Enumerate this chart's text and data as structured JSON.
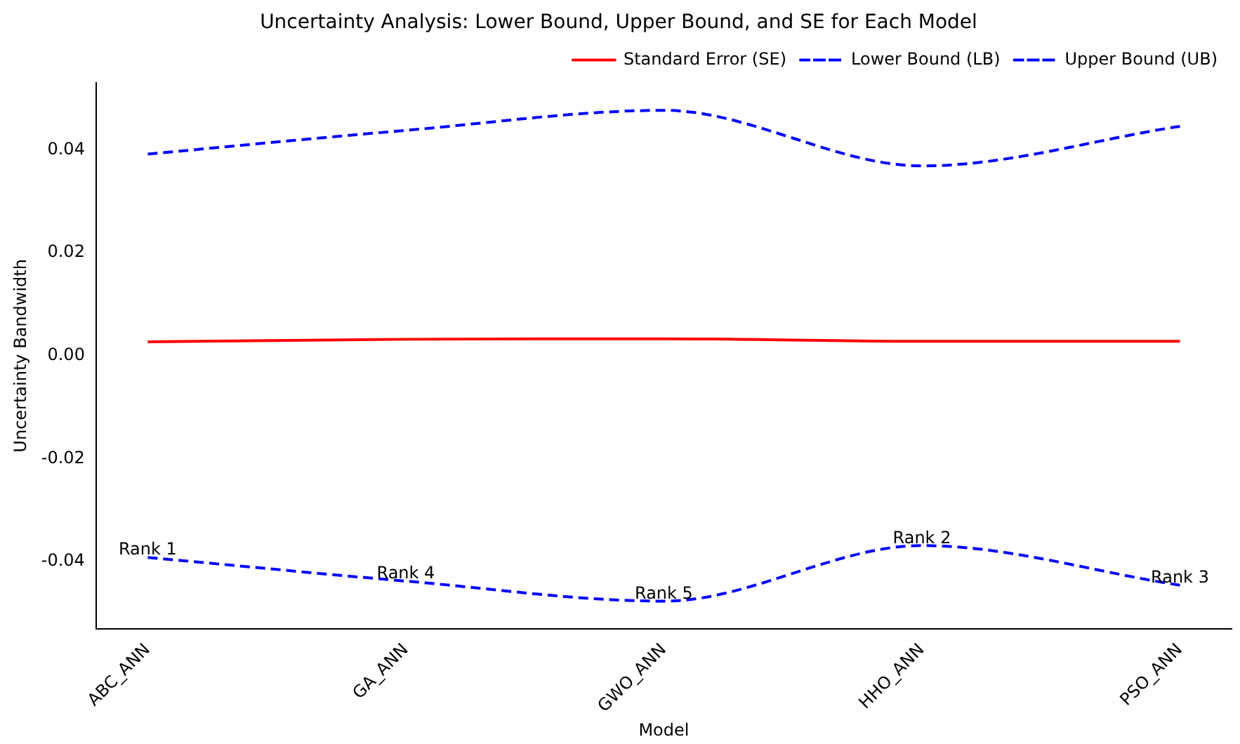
{
  "chart_data": {
    "type": "line",
    "title": "Uncertainty Analysis: Lower Bound, Upper Bound, and SE for Each Model",
    "xlabel": "Model",
    "ylabel": "Uncertainty Bandwidth",
    "categories": [
      "ABC_ANN",
      "GA_ANN",
      "GWO_ANN",
      "HHO_ANN",
      "PSO_ANN"
    ],
    "series": [
      {
        "name": "Standard Error (SE)",
        "color": "#ff0000",
        "line_style": "solid",
        "values": [
          0.0027,
          0.0032,
          0.0033,
          0.0028,
          0.0028
        ]
      },
      {
        "name": "Lower Bound (LB)",
        "color": "#0000ff",
        "line_style": "dashed",
        "values": [
          -0.0392,
          -0.0438,
          -0.0477,
          -0.0369,
          -0.0446
        ]
      },
      {
        "name": "Upper Bound (UB)",
        "color": "#0000ff",
        "line_style": "dashed",
        "values": [
          0.0392,
          0.0438,
          0.0477,
          0.0369,
          0.0446
        ]
      }
    ],
    "ylim": [
      -0.0531,
      0.0531
    ],
    "yticks": [
      -0.04,
      -0.02,
      {
        "value": 0,
        "label": "0.00"
      },
      0.02,
      0.04
    ],
    "grid": false,
    "legend": "top right",
    "marker": "none",
    "annotations": [
      {
        "text": "Rank 1",
        "x": "ABC_ANN",
        "y": -0.0392
      },
      {
        "text": "Rank 4",
        "x": "GA_ANN",
        "y": -0.0438
      },
      {
        "text": "Rank 5",
        "x": "GWO_ANN",
        "y": -0.0477
      },
      {
        "text": "Rank 2",
        "x": "HHO_ANN",
        "y": -0.0369
      },
      {
        "text": "Rank 3",
        "x": "PSO_ANN",
        "y": -0.0446
      }
    ]
  }
}
